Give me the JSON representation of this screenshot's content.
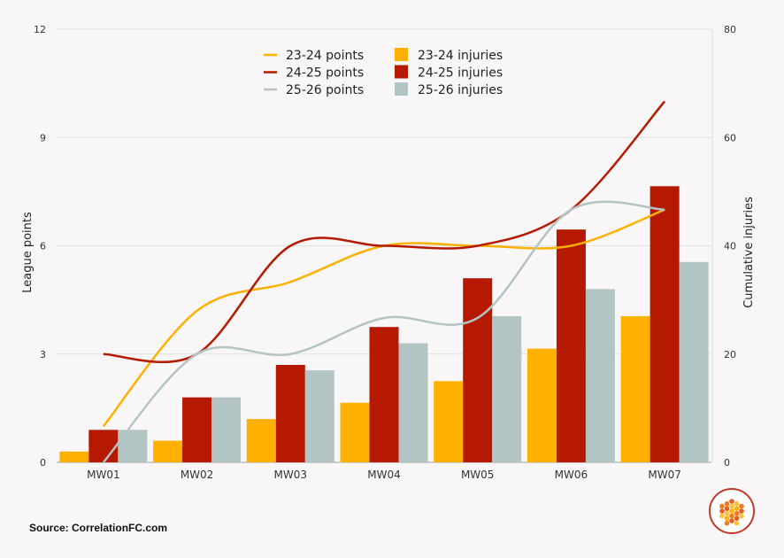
{
  "chart_data": {
    "type": "bar+line",
    "categories": [
      "MW01",
      "MW02",
      "MW03",
      "MW04",
      "MW05",
      "MW06",
      "MW07"
    ],
    "bar_series": [
      {
        "name": "23-24 injuries",
        "color": "#ffb000",
        "values": [
          2,
          4,
          8,
          11,
          15,
          21,
          27
        ]
      },
      {
        "name": "24-25 injuries",
        "color": "#b51a00",
        "values": [
          6,
          12,
          18,
          25,
          34,
          43,
          51
        ]
      },
      {
        "name": "25-26 injuries",
        "color": "#b3c4c4",
        "values": [
          6,
          12,
          17,
          22,
          27,
          32,
          37
        ]
      }
    ],
    "line_series": [
      {
        "name": "23-24 points",
        "color": "#ffb000",
        "values": [
          1,
          4.2,
          5,
          6,
          6,
          6,
          7
        ]
      },
      {
        "name": "24-25 points",
        "color": "#b51a00",
        "values": [
          3,
          3,
          6,
          6,
          6,
          7,
          10
        ]
      },
      {
        "name": "25-26 points",
        "color": "#b3c4c4",
        "values": [
          0,
          3,
          3,
          4,
          4,
          7,
          7
        ]
      }
    ],
    "ylabel_left": "League points",
    "ylabel_right": "Cumulative injuries",
    "ylim_left": [
      0,
      12
    ],
    "ylim_right": [
      0,
      80
    ],
    "yticks_left": [
      "0",
      "3",
      "6",
      "9",
      "12"
    ],
    "yticks_right": [
      "0",
      "20",
      "40",
      "60",
      "80"
    ],
    "grid": true,
    "legend_position": "top"
  },
  "source": "Source: CorrelationFC.com"
}
